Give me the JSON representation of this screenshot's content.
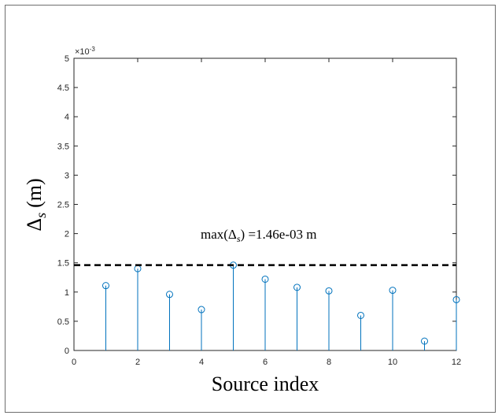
{
  "chart_data": {
    "type": "stem",
    "x": [
      1,
      2,
      3,
      4,
      5,
      6,
      7,
      8,
      9,
      10,
      11,
      12
    ],
    "y": [
      0.00111,
      0.0014,
      0.00096,
      0.0007,
      0.00146,
      0.00122,
      0.00108,
      0.00102,
      0.0006,
      0.00103,
      0.00016,
      0.00087
    ],
    "xlim": [
      0,
      12
    ],
    "ylim": [
      0,
      0.005
    ],
    "xticks": [
      "0",
      "2",
      "4",
      "6",
      "8",
      "10",
      "12"
    ],
    "yticks": [
      "0",
      "0.5",
      "1",
      "1.5",
      "2",
      "2.5",
      "3",
      "3.5",
      "4",
      "4.5",
      "5"
    ],
    "y_exponent_label": "×10",
    "y_exponent_power": "-3",
    "xlabel": "Source index",
    "ylabel_symbol": "Δ",
    "ylabel_subscript": "s",
    "ylabel_unit": "(m)",
    "max_line_value": 0.00146,
    "annotation": {
      "prefix": "max(Δ",
      "subscript": "s",
      "suffix": ") =1.46e-03 m"
    },
    "grid": false,
    "stem_color": "#0072BD",
    "max_line_color": "#000000"
  }
}
